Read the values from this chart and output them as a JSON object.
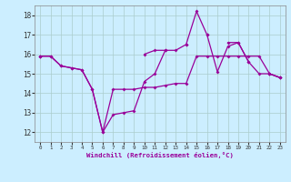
{
  "xlabel": "Windchill (Refroidissement éolien,°C)",
  "hours": [
    0,
    1,
    2,
    3,
    4,
    5,
    6,
    7,
    8,
    9,
    10,
    11,
    12,
    13,
    14,
    15,
    16,
    17,
    18,
    19,
    20,
    21,
    22,
    23
  ],
  "line1": [
    15.9,
    15.9,
    15.4,
    15.3,
    15.2,
    14.2,
    12.0,
    12.9,
    13.0,
    13.1,
    14.6,
    15.0,
    16.2,
    16.2,
    16.5,
    18.2,
    17.0,
    15.1,
    16.4,
    16.6,
    15.6,
    15.0,
    15.0,
    14.8
  ],
  "line2": [
    15.9,
    15.9,
    15.4,
    15.3,
    15.2,
    14.2,
    12.0,
    14.2,
    14.2,
    14.2,
    14.3,
    14.3,
    14.4,
    14.5,
    14.5,
    15.9,
    15.9,
    15.9,
    15.9,
    15.9,
    15.9,
    15.9,
    15.0,
    14.8
  ],
  "line3": [
    15.9,
    null,
    null,
    null,
    null,
    null,
    null,
    null,
    null,
    null,
    16.0,
    16.2,
    16.2,
    null,
    16.5,
    null,
    17.0,
    null,
    16.6,
    16.6,
    15.6,
    null,
    15.0,
    14.8
  ],
  "line_color": "#990099",
  "bg_color": "#cceeff",
  "grid_color": "#aacccc",
  "yticks": [
    12,
    13,
    14,
    15,
    16,
    17,
    18
  ],
  "markersize": 2.0,
  "linewidth": 0.9
}
